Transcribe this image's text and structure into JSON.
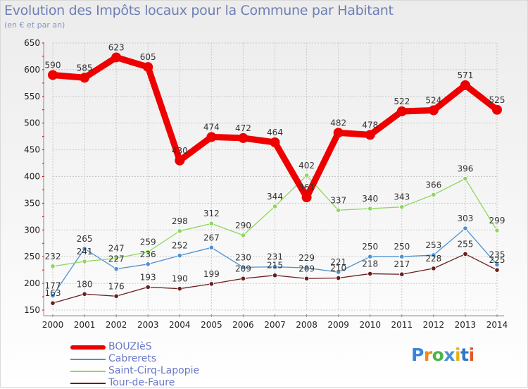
{
  "chart_data": {
    "type": "line",
    "title": "Evolution des Impôts locaux pour la Commune par Habitant",
    "subtitle": "(en € et par an)",
    "xlabel": "",
    "ylabel": "",
    "x": [
      "2000",
      "2001",
      "2002",
      "2003",
      "2004",
      "2005",
      "2006",
      "2007",
      "2008",
      "2009",
      "2010",
      "2011",
      "2012",
      "2013",
      "2014"
    ],
    "ylim": [
      150,
      650
    ],
    "yticks": [
      150,
      200,
      250,
      300,
      350,
      400,
      450,
      500,
      550,
      600,
      650
    ],
    "grid": true,
    "legend_position": "bottom-left",
    "series": [
      {
        "name": "BOUZIèS",
        "color": "#ee0000",
        "values": [
          590,
          585,
          623,
          605,
          430,
          474,
          472,
          464,
          361,
          482,
          478,
          522,
          524,
          571,
          525
        ]
      },
      {
        "name": "Cabrerets",
        "color": "#4f91cf",
        "values": [
          177,
          265,
          227,
          236,
          252,
          267,
          230,
          231,
          229,
          221,
          250,
          250,
          253,
          303,
          235
        ]
      },
      {
        "name": "Saint-Cirq-Lapopie",
        "color": "#8fd65e",
        "values": [
          232,
          241,
          247,
          259,
          298,
          312,
          290,
          344,
          402,
          337,
          340,
          343,
          366,
          396,
          299
        ]
      },
      {
        "name": "Tour-de-Faure",
        "color": "#6b1e1e",
        "values": [
          163,
          180,
          176,
          193,
          190,
          199,
          209,
          215,
          209,
          210,
          218,
          217,
          228,
          255,
          225
        ]
      }
    ]
  },
  "logo": {
    "letters": [
      "P",
      "r",
      "o",
      "x",
      "i",
      "t",
      "i"
    ],
    "colors": [
      "#3a86d6",
      "#f08a1c",
      "#49b649",
      "#4d8fd6",
      "#e8b21a",
      "#2f77c9",
      "#e05a2a"
    ]
  }
}
